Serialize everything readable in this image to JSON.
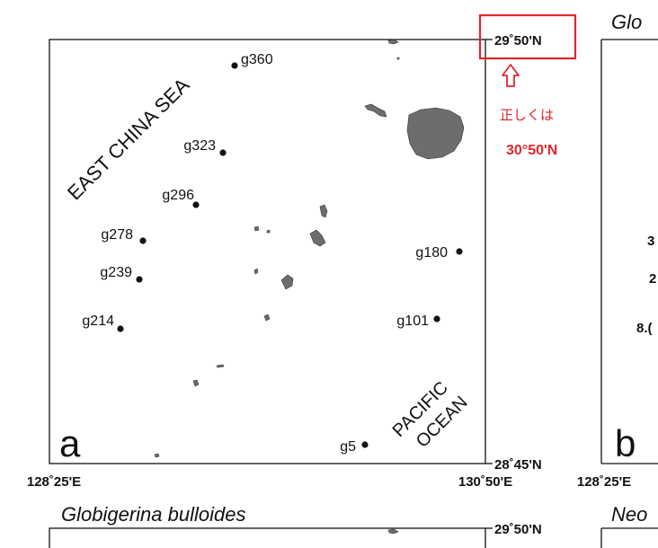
{
  "panel_a": {
    "letter": "a",
    "sea_label_west": "EAST CHINA SEA",
    "sea_label_east_line1": "PACIFIC",
    "sea_label_east_line2": "OCEAN",
    "lat_top": "29˚50'N",
    "lat_bottom": "28˚45'N",
    "lon_left": "128˚25'E",
    "lon_right": "130˚50'E",
    "stations": [
      {
        "id": "g360"
      },
      {
        "id": "g323"
      },
      {
        "id": "g296"
      },
      {
        "id": "g278"
      },
      {
        "id": "g239"
      },
      {
        "id": "g214"
      },
      {
        "id": "g180"
      },
      {
        "id": "g101"
      },
      {
        "id": "g5"
      }
    ]
  },
  "correction": {
    "note": "正しくは",
    "value": "30°50'N",
    "highlight_color": "#e0262c"
  },
  "panel_b": {
    "letter": "b",
    "title_partial": "Glo",
    "lon_left": "128˚25'E",
    "tick_partial": [
      "3",
      "2",
      "8.("
    ]
  },
  "lower_panel": {
    "title": "Globigerina bulloides",
    "lat_top": "29˚50'N",
    "right_title_partial": "Neo"
  }
}
